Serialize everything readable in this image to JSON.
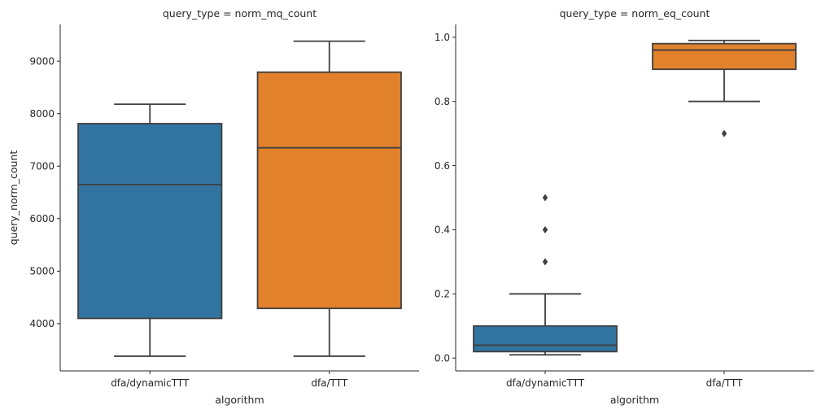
{
  "chart_data": [
    {
      "type": "box",
      "title": "query_type = norm_mq_count",
      "xlabel": "algorithm",
      "ylabel": "query_norm_count",
      "categories": [
        "dfa/dynamicTTT",
        "dfa/TTT"
      ],
      "ylim": [
        3100,
        9700
      ],
      "yticks": [
        4000,
        5000,
        6000,
        7000,
        8000,
        9000
      ],
      "yticklabels": [
        "4000",
        "5000",
        "6000",
        "7000",
        "8000",
        "9000"
      ],
      "boxes": [
        {
          "category": "dfa/dynamicTTT",
          "whisker_low": 3380,
          "q1": 4100,
          "median": 6650,
          "q3": 7810,
          "whisker_high": 8180,
          "outliers": [],
          "color": "#3274a1"
        },
        {
          "category": "dfa/TTT",
          "whisker_low": 3380,
          "q1": 4290,
          "median": 7350,
          "q3": 8790,
          "whisker_high": 9380,
          "outliers": [],
          "color": "#e1812c"
        }
      ],
      "grid": false
    },
    {
      "type": "box",
      "title": "query_type = norm_eq_count",
      "xlabel": "algorithm",
      "ylabel": "",
      "categories": [
        "dfa/dynamicTTT",
        "dfa/TTT"
      ],
      "ylim": [
        -0.04,
        1.04
      ],
      "yticks": [
        0.0,
        0.2,
        0.4,
        0.6,
        0.8,
        1.0
      ],
      "yticklabels": [
        "0.0",
        "0.2",
        "0.4",
        "0.6",
        "0.8",
        "1.0"
      ],
      "boxes": [
        {
          "category": "dfa/dynamicTTT",
          "whisker_low": 0.01,
          "q1": 0.02,
          "median": 0.04,
          "q3": 0.1,
          "whisker_high": 0.2,
          "outliers": [
            0.3,
            0.4,
            0.5
          ],
          "color": "#3274a1"
        },
        {
          "category": "dfa/TTT",
          "whisker_low": 0.8,
          "q1": 0.9,
          "median": 0.96,
          "q3": 0.98,
          "whisker_high": 0.99,
          "outliers": [
            0.7
          ],
          "color": "#e1812c"
        }
      ],
      "grid": false
    }
  ]
}
